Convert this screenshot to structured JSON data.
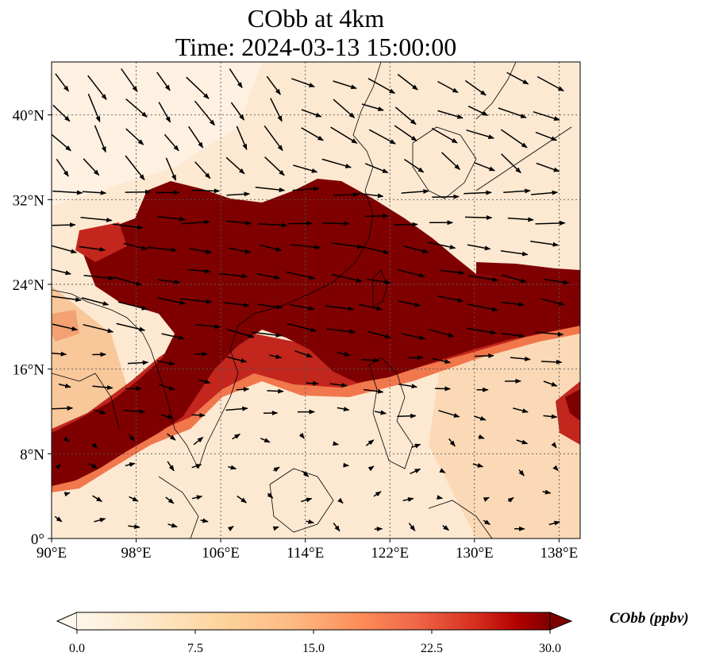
{
  "title": {
    "line1": "CObb at 4km",
    "line2": "Time: 2024-03-13 15:00:00"
  },
  "map": {
    "lon_range": [
      90,
      140
    ],
    "lat_range": [
      0,
      45
    ],
    "lon_ticks": [
      {
        "value": 90,
        "label": "90°E"
      },
      {
        "value": 98,
        "label": "98°E"
      },
      {
        "value": 106,
        "label": "106°E"
      },
      {
        "value": 114,
        "label": "114°E"
      },
      {
        "value": 122,
        "label": "122°E"
      },
      {
        "value": 130,
        "label": "130°E"
      },
      {
        "value": 138,
        "label": "138°E"
      }
    ],
    "lat_ticks": [
      {
        "value": 0,
        "label": "0°"
      },
      {
        "value": 8,
        "label": "8°N"
      },
      {
        "value": 16,
        "label": "16°N"
      },
      {
        "value": 24,
        "label": "24°N"
      },
      {
        "value": 32,
        "label": "32°N"
      },
      {
        "value": 40,
        "label": "40°N"
      }
    ],
    "gridlines": true,
    "colors": {
      "background": "#fde9d2",
      "plume_core": "#7f0000",
      "plume_edge": "#c2261d",
      "plume_fringe": "#ef6a3e",
      "wind_arrows": "#000000",
      "coastline": "#000000"
    }
  },
  "colorbar": {
    "label": "CObb (ppbv)",
    "min": 0,
    "max": 30,
    "ticks": [
      {
        "value": 0,
        "label": "0.0"
      },
      {
        "value": 7.5,
        "label": "7.5"
      },
      {
        "value": 15,
        "label": "15.0"
      },
      {
        "value": 22.5,
        "label": "22.5"
      },
      {
        "value": 30,
        "label": "30.0"
      }
    ],
    "extend": "both",
    "colormap": "OrRd"
  }
}
